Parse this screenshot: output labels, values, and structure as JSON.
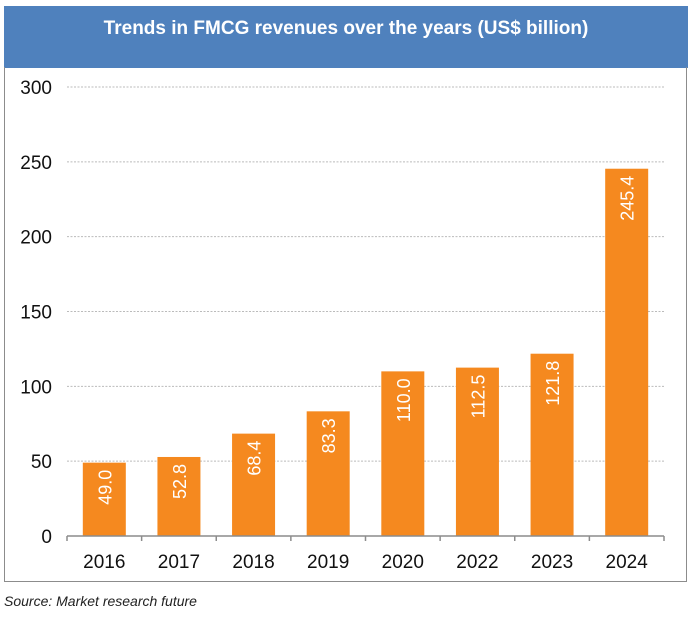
{
  "chart_data": {
    "type": "bar",
    "title": "Trends in FMCG revenues over the years (US$ billion)",
    "categories": [
      "2016",
      "2017",
      "2018",
      "2019",
      "2020",
      "2022",
      "2023",
      "2024"
    ],
    "values": [
      49.0,
      52.8,
      68.4,
      83.3,
      110.0,
      112.5,
      121.8,
      245.4
    ],
    "data_labels": [
      "49.0",
      "52.8",
      "68.4",
      "83.3",
      "110.0",
      "112.5",
      "121.8",
      "245.4"
    ],
    "ylim": [
      0,
      300
    ],
    "yticks": [
      "0",
      "50",
      "100",
      "150",
      "200",
      "250",
      "300"
    ],
    "grid": true,
    "bar_color": "#f5891f",
    "header_color": "#4f81bd"
  },
  "source": "Source: Market research future"
}
